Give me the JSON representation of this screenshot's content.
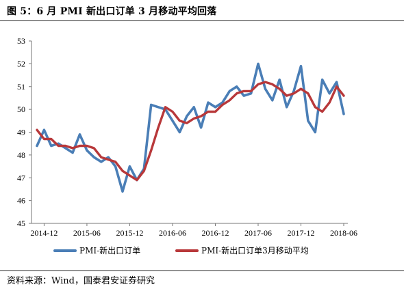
{
  "title": "图 5：6 月 PMI 新出口订单 3 月移动平均回落",
  "source": "资料来源：Wind，国泰君安证券研究",
  "chart_data": {
    "type": "line",
    "ylim": [
      45,
      53
    ],
    "yticks": [
      45,
      46,
      47,
      48,
      49,
      50,
      51,
      52,
      53
    ],
    "xtick_labels": [
      "2014-12",
      "2015-06",
      "2015-12",
      "2016-06",
      "2016-12",
      "2017-06",
      "2017-12",
      "2018-06"
    ],
    "x": [
      "2014-11",
      "2014-12",
      "2015-01",
      "2015-02",
      "2015-03",
      "2015-04",
      "2015-05",
      "2015-06",
      "2015-07",
      "2015-08",
      "2015-09",
      "2015-10",
      "2015-11",
      "2015-12",
      "2016-01",
      "2016-02",
      "2016-03",
      "2016-04",
      "2016-05",
      "2016-06",
      "2016-07",
      "2016-08",
      "2016-09",
      "2016-10",
      "2016-11",
      "2016-12",
      "2017-01",
      "2017-02",
      "2017-03",
      "2017-04",
      "2017-05",
      "2017-06",
      "2017-07",
      "2017-08",
      "2017-09",
      "2017-10",
      "2017-11",
      "2017-12",
      "2018-01",
      "2018-02",
      "2018-03",
      "2018-04",
      "2018-05",
      "2018-06"
    ],
    "grid": false,
    "legend_position": "bottom",
    "series": [
      {
        "name": "PMI-新出口订单",
        "color": "#4a7eb6",
        "values": [
          48.4,
          49.1,
          48.4,
          48.5,
          48.3,
          48.1,
          48.9,
          48.2,
          47.9,
          47.7,
          47.9,
          47.5,
          46.4,
          47.5,
          46.9,
          47.4,
          50.2,
          50.1,
          50.0,
          49.5,
          49.0,
          49.7,
          50.1,
          49.2,
          50.3,
          50.1,
          50.3,
          50.8,
          51.0,
          50.6,
          50.7,
          52.0,
          50.9,
          50.4,
          51.3,
          50.1,
          50.8,
          51.9,
          49.5,
          49.0,
          51.3,
          50.7,
          51.2,
          49.8
        ]
      },
      {
        "name": "PMI-新出口订单3月移动平均",
        "color": "#b8383a",
        "values": [
          49.1,
          48.7,
          48.7,
          48.4,
          48.4,
          48.3,
          48.4,
          48.4,
          48.3,
          47.9,
          47.8,
          47.7,
          47.3,
          47.1,
          46.9,
          47.3,
          48.2,
          49.2,
          50.1,
          49.9,
          49.5,
          49.4,
          49.6,
          49.7,
          49.9,
          49.9,
          50.2,
          50.4,
          50.7,
          50.8,
          50.8,
          51.1,
          51.2,
          51.1,
          50.9,
          50.6,
          50.7,
          50.9,
          50.7,
          50.1,
          49.9,
          50.3,
          51.0,
          50.6
        ]
      }
    ]
  }
}
